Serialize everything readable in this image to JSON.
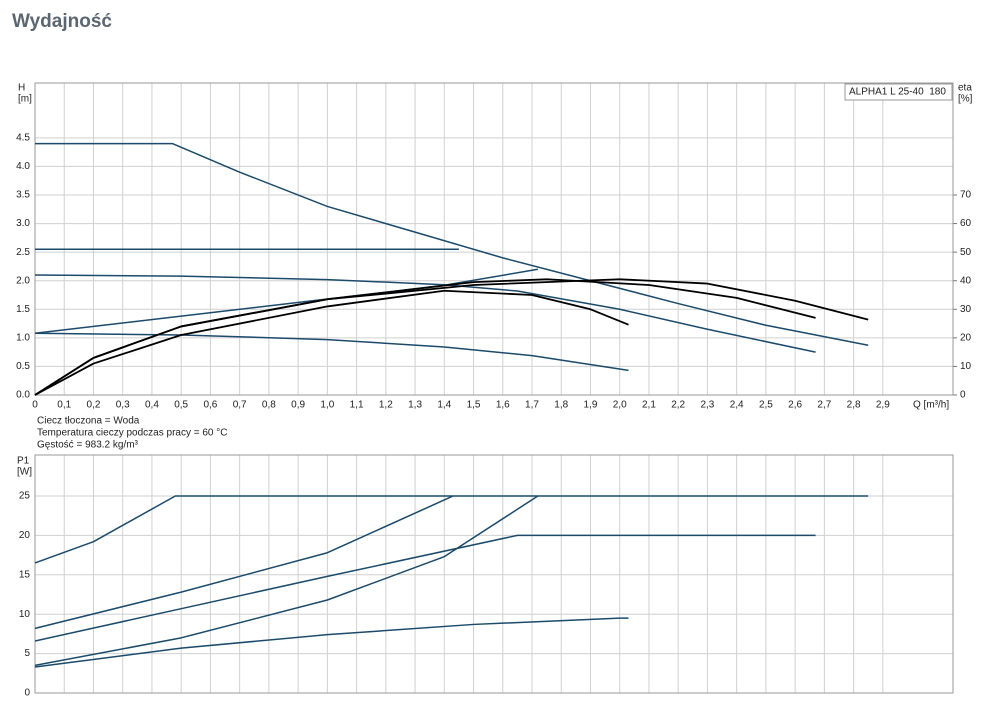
{
  "header": {
    "title": "Wydajność"
  },
  "chart_data": [
    {
      "type": "line",
      "legend_box": "ALPHA1 L 25-40  180",
      "y_label": "H",
      "y_unit": "[m]",
      "y2_label": "eta",
      "y2_unit": "[%]",
      "x_label": "Q [m³/h]",
      "notes": [
        "Ciecz tłoczona = Woda",
        "Temperatura cieczy podczas pracy = 60 °C",
        "Gęstość = 983.2 kg/m³"
      ],
      "xlim": [
        0,
        3.14
      ],
      "ylim": [
        0,
        5.46
      ],
      "y2lim": [
        0,
        109.2
      ],
      "grid": true,
      "xticks": [
        0,
        {
          "value": 0.1,
          "label": "0,1"
        },
        {
          "value": 0.2,
          "label": "0,2"
        },
        {
          "value": 0.3,
          "label": "0,3"
        },
        {
          "value": 0.4,
          "label": "0,4"
        },
        {
          "value": 0.5,
          "label": "0,5"
        },
        {
          "value": 0.6,
          "label": "0,6"
        },
        {
          "value": 0.7,
          "label": "0,7"
        },
        {
          "value": 0.8,
          "label": "0,8"
        },
        {
          "value": 0.9,
          "label": "0,9"
        },
        {
          "value": 1.0,
          "label": "1,0"
        },
        {
          "value": 1.1,
          "label": "1,1"
        },
        {
          "value": 1.2,
          "label": "1,2"
        },
        {
          "value": 1.3,
          "label": "1,3"
        },
        {
          "value": 1.4,
          "label": "1,4"
        },
        {
          "value": 1.5,
          "label": "1,5"
        },
        {
          "value": 1.6,
          "label": "1,6"
        },
        {
          "value": 1.7,
          "label": "1,7"
        },
        {
          "value": 1.8,
          "label": "1,8"
        },
        {
          "value": 1.9,
          "label": "1,9"
        },
        {
          "value": 2.0,
          "label": "2,0"
        },
        {
          "value": 2.1,
          "label": "2,1"
        },
        {
          "value": 2.2,
          "label": "2,2"
        },
        {
          "value": 2.3,
          "label": "2,3"
        },
        {
          "value": 2.4,
          "label": "2,4"
        },
        {
          "value": 2.5,
          "label": "2,5"
        },
        {
          "value": 2.6,
          "label": "2,6"
        },
        {
          "value": 2.7,
          "label": "2,7"
        },
        {
          "value": 2.8,
          "label": "2,8"
        },
        {
          "value": 2.9,
          "label": "2,9"
        }
      ],
      "yticks": [
        {
          "value": 0,
          "label": "0.0"
        },
        {
          "value": 0.5,
          "label": "0.5"
        },
        {
          "value": 1,
          "label": "1.0"
        },
        {
          "value": 1.5,
          "label": "1.5"
        },
        {
          "value": 2,
          "label": "2.0"
        },
        {
          "value": 2.5,
          "label": "2.5"
        },
        {
          "value": 3,
          "label": "3.0"
        },
        {
          "value": 3.5,
          "label": "3.5"
        },
        {
          "value": 4,
          "label": "4.0"
        },
        {
          "value": 4.5,
          "label": "4.5"
        }
      ],
      "y2ticks": [
        0,
        10,
        20,
        30,
        40,
        50,
        60,
        70
      ],
      "series": [
        {
          "color": "#1b4a6b",
          "x": [
            0,
            0.47,
            0.7,
            1.0,
            1.3,
            1.6,
            1.9,
            2.2,
            2.5,
            2.85
          ],
          "values": [
            4.4,
            4.4,
            3.9,
            3.3,
            2.85,
            2.4,
            2.0,
            1.6,
            1.22,
            0.87
          ]
        },
        {
          "color": "#1b4a6b",
          "x": [
            0,
            1.45
          ],
          "values": [
            2.55,
            2.55
          ]
        },
        {
          "color": "#1b4a6b",
          "x": [
            0,
            0.5,
            1.0,
            1.4,
            1.72
          ],
          "values": [
            1.08,
            1.38,
            1.68,
            1.92,
            2.2
          ]
        },
        {
          "color": "#1b4a6b",
          "x": [
            0,
            0.5,
            1.0,
            1.4,
            1.65,
            2.0,
            2.3,
            2.67
          ],
          "values": [
            2.1,
            2.08,
            2.02,
            1.93,
            1.82,
            1.5,
            1.15,
            0.75
          ]
        },
        {
          "color": "#1b4a6b",
          "x": [
            0,
            0.5,
            1.0,
            1.4,
            1.7,
            2.03
          ],
          "values": [
            1.08,
            1.05,
            0.97,
            0.84,
            0.69,
            0.43
          ]
        },
        {
          "color": "#000000",
          "axis": "y2",
          "x": [
            0,
            0.2,
            0.5,
            1.0,
            1.5,
            2.0,
            2.3,
            2.6,
            2.85
          ],
          "values": [
            0,
            13,
            24,
            33.5,
            38.5,
            40.5,
            39,
            33,
            26.4
          ]
        },
        {
          "color": "#000000",
          "axis": "y2",
          "x": [
            0,
            0.2,
            0.5,
            1.0,
            1.5,
            1.75,
            2.1,
            2.4,
            2.67
          ],
          "values": [
            0,
            13,
            24,
            33.5,
            39.5,
            40.5,
            38.5,
            34,
            27
          ]
        },
        {
          "color": "#000000",
          "axis": "y2",
          "x": [
            0,
            0.2,
            0.5,
            1.0,
            1.4,
            1.7,
            1.9,
            2.03
          ],
          "values": [
            0,
            11,
            21,
            31,
            36.5,
            35,
            30,
            24.6
          ]
        }
      ]
    },
    {
      "type": "line",
      "y_label": "P1",
      "y_unit": "[W]",
      "xlim": [
        0,
        3.14
      ],
      "ylim": [
        0,
        30.2
      ],
      "grid": true,
      "yticks": [
        0,
        5,
        10,
        15,
        20,
        25
      ],
      "series": [
        {
          "color": "#1b4a6b",
          "x": [
            0,
            0.2,
            0.48,
            2.85
          ],
          "values": [
            16.5,
            19.2,
            25,
            25
          ]
        },
        {
          "color": "#1b4a6b",
          "x": [
            0,
            0.5,
            1.0,
            1.43
          ],
          "values": [
            8.2,
            12.8,
            17.8,
            25
          ]
        },
        {
          "color": "#1b4a6b",
          "x": [
            0,
            0.5,
            1.0,
            1.65,
            2.67
          ],
          "values": [
            6.6,
            10.7,
            14.8,
            20,
            20
          ]
        },
        {
          "color": "#1b4a6b",
          "x": [
            0,
            0.5,
            1.0,
            1.4,
            1.72
          ],
          "values": [
            3.5,
            7,
            11.8,
            17.3,
            25
          ]
        },
        {
          "color": "#1b4a6b",
          "x": [
            0,
            0.5,
            1.0,
            1.5,
            2.0,
            2.03
          ],
          "values": [
            3.3,
            5.7,
            7.4,
            8.7,
            9.5,
            9.5
          ]
        }
      ]
    }
  ]
}
